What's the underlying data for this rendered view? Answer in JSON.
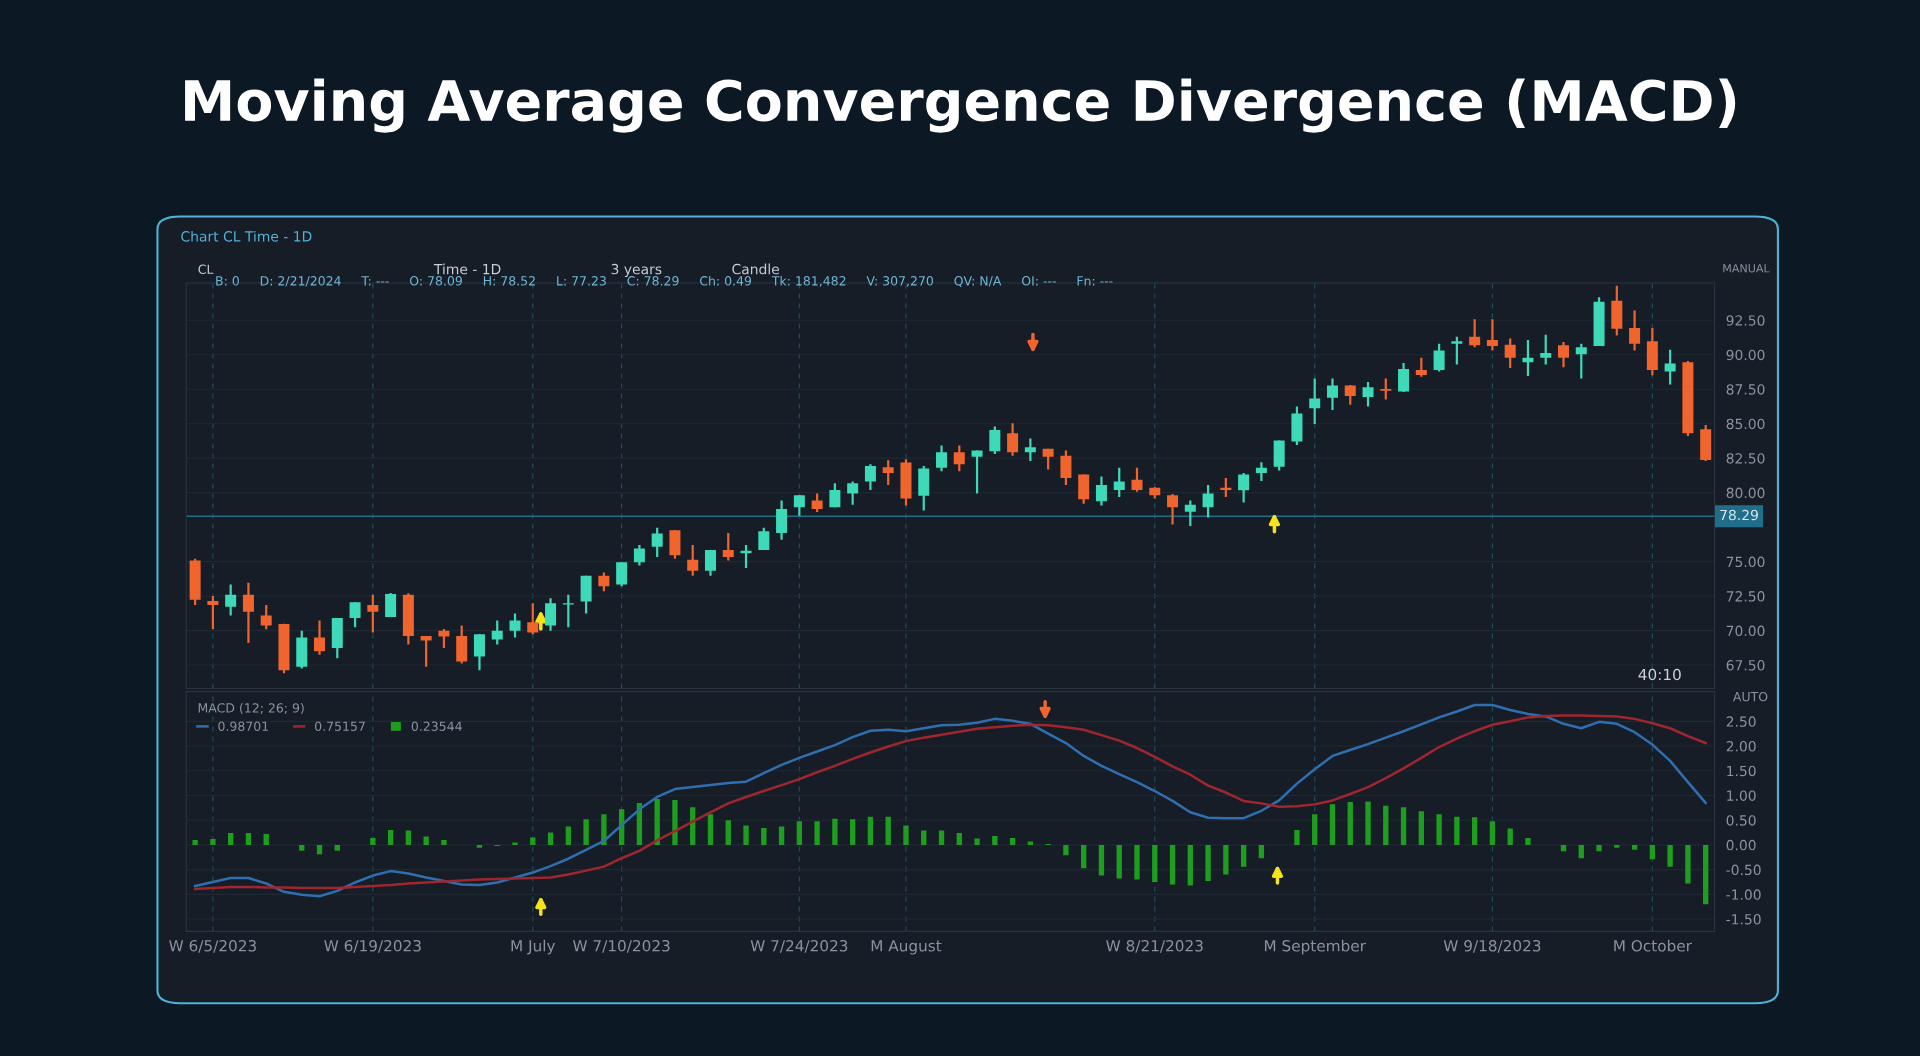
{
  "chart_data": [
    {
      "type": "candlestick",
      "title": "Moving Average Convergence Divergence (MACD)",
      "categories": [
        null,
        null,
        null,
        null,
        null,
        null,
        null,
        null,
        null,
        null,
        null,
        null,
        null,
        null,
        null,
        null,
        null,
        null,
        null,
        null,
        null,
        null,
        null,
        null,
        null,
        null,
        null,
        null,
        null,
        null,
        null,
        null,
        null,
        null,
        null,
        null,
        null,
        null,
        null,
        null,
        null,
        null,
        null,
        null,
        null,
        null,
        null,
        null,
        null,
        null,
        null,
        null,
        null,
        null,
        null,
        null,
        null,
        null,
        null,
        null,
        null,
        null,
        null,
        null,
        null,
        null,
        null,
        null,
        null,
        null,
        null,
        null,
        null,
        null,
        null,
        null,
        null,
        null,
        null,
        null,
        null,
        null,
        null,
        null,
        null,
        null
      ],
      "ohlc": [
        [
          75.09,
          75.2,
          71.85,
          72.23
        ],
        [
          72.15,
          72.5,
          70.1,
          71.85
        ],
        [
          71.73,
          73.35,
          71.1,
          72.6
        ],
        [
          72.6,
          73.47,
          69.1,
          71.36
        ],
        [
          71.1,
          71.85,
          70.1,
          70.36
        ],
        [
          70.48,
          70.5,
          66.9,
          67.13
        ],
        [
          67.37,
          69.99,
          67.25,
          69.49
        ],
        [
          69.49,
          70.73,
          68.25,
          68.5
        ],
        [
          68.74,
          70.91,
          68.0,
          70.91
        ],
        [
          70.91,
          72.05,
          70.24,
          72.05
        ],
        [
          71.85,
          72.6,
          69.86,
          71.36
        ],
        [
          70.98,
          72.72,
          70.98,
          72.65
        ],
        [
          72.6,
          72.7,
          68.99,
          69.61
        ],
        [
          69.61,
          69.61,
          67.37,
          69.29
        ],
        [
          69.99,
          70.11,
          68.74,
          69.57
        ],
        [
          69.61,
          70.36,
          67.62,
          67.75
        ],
        [
          68.12,
          69.74,
          67.13,
          69.74
        ],
        [
          69.36,
          70.73,
          68.99,
          69.99
        ],
        [
          69.99,
          71.23,
          69.49,
          70.73
        ],
        [
          70.61,
          71.98,
          69.74,
          69.86
        ],
        [
          70.36,
          72.35,
          69.99,
          71.98
        ],
        [
          71.9,
          72.6,
          70.24,
          71.98
        ],
        [
          72.1,
          73.97,
          71.23,
          73.97
        ],
        [
          73.97,
          74.22,
          72.85,
          73.22
        ],
        [
          73.35,
          74.96,
          73.22,
          74.96
        ],
        [
          74.96,
          76.21,
          74.71,
          75.96
        ],
        [
          76.08,
          77.45,
          75.34,
          77.03
        ],
        [
          77.28,
          77.3,
          75.2,
          75.46
        ],
        [
          75.14,
          76.21,
          73.97,
          74.34
        ],
        [
          74.34,
          75.84,
          73.97,
          75.84
        ],
        [
          75.84,
          77.08,
          75.09,
          75.34
        ],
        [
          75.6,
          76.21,
          74.54,
          75.78
        ],
        [
          75.84,
          77.45,
          75.84,
          77.2
        ],
        [
          77.08,
          79.44,
          76.58,
          78.82
        ],
        [
          78.95,
          79.82,
          78.32,
          79.82
        ],
        [
          79.44,
          79.94,
          78.6,
          78.82
        ],
        [
          78.95,
          80.69,
          78.95,
          80.19
        ],
        [
          79.94,
          80.81,
          79.12,
          80.69
        ],
        [
          80.81,
          82.06,
          80.19,
          81.93
        ],
        [
          81.85,
          82.35,
          80.56,
          81.43
        ],
        [
          82.18,
          82.43,
          79.07,
          79.57
        ],
        [
          79.77,
          81.93,
          78.7,
          81.76
        ],
        [
          81.81,
          83.42,
          81.56,
          82.93
        ],
        [
          82.93,
          83.42,
          81.56,
          82.06
        ],
        [
          82.6,
          83.05,
          79.94,
          83.05
        ],
        [
          83.0,
          84.79,
          82.8,
          84.54
        ],
        [
          84.3,
          85.04,
          82.68,
          82.93
        ],
        [
          82.93,
          83.92,
          82.3,
          83.3
        ],
        [
          83.18,
          83.18,
          81.68,
          82.6
        ],
        [
          82.68,
          83.05,
          80.56,
          81.06
        ],
        [
          81.31,
          81.31,
          79.2,
          79.52
        ],
        [
          79.37,
          81.18,
          79.07,
          80.56
        ],
        [
          80.19,
          81.81,
          79.69,
          80.81
        ],
        [
          80.94,
          81.81,
          80.06,
          80.19
        ],
        [
          80.36,
          80.4,
          79.57,
          79.82
        ],
        [
          79.82,
          79.9,
          77.7,
          78.95
        ],
        [
          78.62,
          79.44,
          77.58,
          79.12
        ],
        [
          78.95,
          80.56,
          78.2,
          79.94
        ],
        [
          80.36,
          81.06,
          79.69,
          80.19
        ],
        [
          80.17,
          81.43,
          79.28,
          81.31
        ],
        [
          81.43,
          82.2,
          80.85,
          81.81
        ],
        [
          81.87,
          83.79,
          81.6,
          83.79
        ],
        [
          83.71,
          86.24,
          83.46,
          85.74
        ],
        [
          86.12,
          88.27,
          84.98,
          86.83
        ],
        [
          86.88,
          88.27,
          85.99,
          87.77
        ],
        [
          87.77,
          87.8,
          86.37,
          87.01
        ],
        [
          86.93,
          88.02,
          86.25,
          87.64
        ],
        [
          87.52,
          88.27,
          86.75,
          87.39
        ],
        [
          87.33,
          89.4,
          87.3,
          88.96
        ],
        [
          88.9,
          89.79,
          88.4,
          88.53
        ],
        [
          88.9,
          90.8,
          88.78,
          90.3
        ],
        [
          90.8,
          91.31,
          89.29,
          90.98
        ],
        [
          91.31,
          92.58,
          90.55,
          90.68
        ],
        [
          91.06,
          92.58,
          90.3,
          90.63
        ],
        [
          90.73,
          91.18,
          89.03,
          89.79
        ],
        [
          89.46,
          91.06,
          88.45,
          89.79
        ],
        [
          89.79,
          91.44,
          89.29,
          90.12
        ],
        [
          90.68,
          90.93,
          89.1,
          89.79
        ],
        [
          90.04,
          90.8,
          88.27,
          90.55
        ],
        [
          90.63,
          94.17,
          90.63,
          93.84
        ],
        [
          93.92,
          95.0,
          91.39,
          91.89
        ],
        [
          91.94,
          93.21,
          90.3,
          90.8
        ],
        [
          90.98,
          91.94,
          88.52,
          88.9
        ],
        [
          88.78,
          90.37,
          87.84,
          89.36
        ],
        [
          89.46,
          89.55,
          84.1,
          84.3
        ],
        [
          84.6,
          84.9,
          82.3,
          82.37
        ]
      ],
      "colors": [
        "#f0642e",
        "#f0642e",
        "#3dd9b8",
        "#f0642e",
        "#f0642e",
        "#f0642e",
        "#3dd9b8",
        "#f0642e",
        "#3dd9b8",
        "#3dd9b8",
        "#f0642e",
        "#3dd9b8",
        "#f0642e",
        "#f0642e",
        "#f0642e",
        "#f0642e",
        "#3dd9b8",
        "#3dd9b8",
        "#3dd9b8",
        "#f0642e",
        "#3dd9b8",
        "#3dd9b8",
        "#3dd9b8",
        "#f0642e",
        "#3dd9b8",
        "#3dd9b8",
        "#3dd9b8",
        "#f0642e",
        "#f0642e",
        "#3dd9b8",
        "#f0642e",
        "#3dd9b8",
        "#3dd9b8",
        "#3dd9b8",
        "#3dd9b8",
        "#f0642e",
        "#3dd9b8",
        "#3dd9b8",
        "#3dd9b8",
        "#f0642e",
        "#f0642e",
        "#3dd9b8",
        "#3dd9b8",
        "#f0642e",
        "#3dd9b8",
        "#3dd9b8",
        "#f0642e",
        "#3dd9b8",
        "#f0642e",
        "#f0642e",
        "#f0642e",
        "#3dd9b8",
        "#3dd9b8",
        "#f0642e",
        "#f0642e",
        "#f0642e",
        "#3dd9b8",
        "#3dd9b8",
        "#f0642e",
        "#3dd9b8",
        "#3dd9b8",
        "#3dd9b8",
        "#3dd9b8",
        "#3dd9b8",
        "#3dd9b8",
        "#f0642e",
        "#3dd9b8",
        "#f0642e",
        "#3dd9b8",
        "#f0642e",
        "#3dd9b8",
        "#3dd9b8",
        "#f0642e",
        "#f0642e",
        "#f0642e",
        "#3dd9b8",
        "#3dd9b8",
        "#f0642e",
        "#3dd9b8",
        "#3dd9b8",
        "#f0642e",
        "#f0642e",
        "#f0642e",
        "#3dd9b8",
        "#f0642e",
        "#f0642e"
      ],
      "ylim": [
        65.8,
        95.2
      ],
      "yticks": [
        {
          "value": 67.5,
          "label": "67.50"
        },
        {
          "value": 70,
          "label": "70.00"
        },
        {
          "value": 72.5,
          "label": "72.50"
        },
        {
          "value": 75,
          "label": "75.00"
        },
        {
          "value": 80,
          "label": "80.00"
        },
        {
          "value": 82.5,
          "label": "82.50"
        },
        {
          "value": 85,
          "label": "85.00"
        },
        {
          "value": 87.5,
          "label": "87.50"
        },
        {
          "value": 90,
          "label": "90.00"
        },
        {
          "value": 92.5,
          "label": "92.50"
        }
      ],
      "ref_lines": [
        {
          "axis": "y",
          "value": 78.29,
          "label": "78.29",
          "color": "#1f6f8b"
        }
      ],
      "grid": true,
      "tick_labels": "y",
      "annotations": [
        "Chart CL Time - 1D",
        "CL",
        "Time - 1D",
        "3 years",
        "Candle",
        "B: 0     D: 2/21/2024     T: ---     O: 78.09     H: 78.52     L: 77.23     C: 78.29     Ch: 0.49     Tk: 181,482     V: 307,270     QV: N/A     OI: ---     Fn: ---",
        "MANUAL",
        "40:10"
      ]
    },
    {
      "type": "line",
      "categories": [
        null,
        "W 6/5/2023",
        null,
        null,
        null,
        null,
        null,
        null,
        null,
        null,
        "W 6/19/2023",
        null,
        null,
        null,
        null,
        null,
        null,
        null,
        null,
        "M July",
        null,
        null,
        null,
        null,
        "W 7/10/2023",
        null,
        null,
        null,
        null,
        null,
        null,
        null,
        null,
        null,
        "W 7/24/2023",
        null,
        null,
        null,
        null,
        null,
        "M August",
        null,
        null,
        null,
        null,
        null,
        null,
        null,
        null,
        null,
        null,
        null,
        null,
        null,
        "W 8/21/2023",
        null,
        null,
        null,
        null,
        null,
        null,
        null,
        null,
        "M September",
        null,
        null,
        null,
        null,
        null,
        null,
        null,
        null,
        null,
        "W 9/18/2023",
        null,
        null,
        null,
        null,
        null,
        null,
        null,
        null,
        "M October",
        null,
        null,
        null
      ],
      "series": [
        {
          "name": "0.98701",
          "type": "line",
          "color": "#2f6fb0",
          "values": [
            -0.83,
            -0.75,
            -0.67,
            -0.67,
            -0.78,
            -0.95,
            -1.01,
            -1.04,
            -0.93,
            -0.76,
            -0.62,
            -0.53,
            -0.58,
            -0.66,
            -0.73,
            -0.8,
            -0.81,
            -0.76,
            -0.66,
            -0.56,
            -0.43,
            -0.28,
            -0.1,
            0.08,
            0.4,
            0.72,
            0.97,
            1.13,
            1.17,
            1.21,
            1.25,
            1.28,
            1.45,
            1.62,
            1.76,
            1.89,
            2.02,
            2.18,
            2.31,
            2.33,
            2.3,
            2.36,
            2.42,
            2.43,
            2.47,
            2.55,
            2.51,
            2.45,
            2.25,
            2.06,
            1.8,
            1.6,
            1.43,
            1.27,
            1.09,
            0.89,
            0.66,
            0.55,
            0.54,
            0.54,
            0.69,
            0.9,
            1.24,
            1.53,
            1.8,
            1.92,
            2.04,
            2.17,
            2.3,
            2.44,
            2.58,
            2.7,
            2.83,
            2.83,
            2.73,
            2.65,
            2.6,
            2.45,
            2.36,
            2.49,
            2.45,
            2.28,
            2.03,
            1.7,
            1.27,
            0.85
          ]
        },
        {
          "name": "0.75157",
          "type": "line",
          "color": "#a0262e",
          "values": [
            -0.89,
            -0.87,
            -0.85,
            -0.85,
            -0.86,
            -0.86,
            -0.87,
            -0.87,
            -0.87,
            -0.85,
            -0.83,
            -0.81,
            -0.78,
            -0.76,
            -0.74,
            -0.72,
            -0.7,
            -0.69,
            -0.68,
            -0.67,
            -0.66,
            -0.6,
            -0.52,
            -0.44,
            -0.27,
            -0.12,
            0.09,
            0.28,
            0.47,
            0.66,
            0.84,
            0.97,
            1.09,
            1.21,
            1.33,
            1.47,
            1.6,
            1.74,
            1.87,
            1.99,
            2.1,
            2.17,
            2.23,
            2.29,
            2.35,
            2.38,
            2.41,
            2.43,
            2.42,
            2.38,
            2.33,
            2.22,
            2.11,
            1.96,
            1.78,
            1.59,
            1.42,
            1.2,
            1.06,
            0.89,
            0.84,
            0.77,
            0.78,
            0.82,
            0.9,
            1.03,
            1.17,
            1.35,
            1.55,
            1.76,
            1.98,
            2.15,
            2.3,
            2.43,
            2.5,
            2.58,
            2.61,
            2.62,
            2.62,
            2.61,
            2.6,
            2.55,
            2.46,
            2.36,
            2.2,
            2.06
          ]
        },
        {
          "name": "0.23544",
          "type": "bar",
          "color": "#1e9e1e",
          "values": [
            0.1,
            0.12,
            0.24,
            0.24,
            0.22,
            0.0,
            -0.12,
            -0.19,
            -0.12,
            0.0,
            0.14,
            0.3,
            0.29,
            0.17,
            0.1,
            0.0,
            -0.06,
            -0.02,
            0.05,
            0.15,
            0.25,
            0.37,
            0.52,
            0.62,
            0.72,
            0.85,
            0.93,
            0.91,
            0.76,
            0.62,
            0.5,
            0.39,
            0.34,
            0.37,
            0.48,
            0.48,
            0.53,
            0.52,
            0.57,
            0.57,
            0.39,
            0.29,
            0.29,
            0.24,
            0.13,
            0.18,
            0.14,
            0.07,
            0.02,
            -0.21,
            -0.47,
            -0.62,
            -0.68,
            -0.7,
            -0.75,
            -0.8,
            -0.82,
            -0.73,
            -0.6,
            -0.44,
            -0.27,
            null,
            0.3,
            0.62,
            0.82,
            0.87,
            0.88,
            0.79,
            0.76,
            0.68,
            0.62,
            0.57,
            0.56,
            0.48,
            0.33,
            0.14,
            0.0,
            -0.13,
            -0.27,
            -0.13,
            -0.06,
            -0.1,
            -0.29,
            -0.44,
            -0.78,
            -1.2
          ]
        }
      ],
      "legend_title": "MACD (12; 26; 9)",
      "legend": "top left",
      "ylim": [
        -1.75,
        3.1
      ],
      "yticks": [
        {
          "value": -1.5,
          "label": "-1.50"
        },
        {
          "value": -1,
          "label": "-1.00"
        },
        {
          "value": -0.5,
          "label": "-0.50"
        },
        {
          "value": 0,
          "label": "0.00"
        },
        {
          "value": 0.5,
          "label": "0.50"
        },
        {
          "value": 1,
          "label": "1.00"
        },
        {
          "value": 1.5,
          "label": "1.50"
        },
        {
          "value": 2,
          "label": "2.00"
        },
        {
          "value": 2.5,
          "label": "2.50"
        }
      ],
      "grid": true,
      "annotations": [
        "AUTO"
      ]
    }
  ]
}
